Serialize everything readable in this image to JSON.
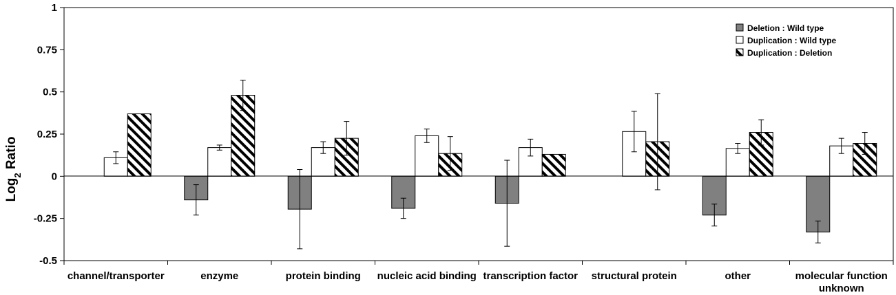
{
  "chart_data": {
    "type": "bar",
    "ylabel_main": "Log",
    "ylabel_sub": "2",
    "ylabel_tail": " Ratio",
    "ylim": [
      -0.5,
      1
    ],
    "yticks": [
      1,
      0.75,
      0.5,
      0.25,
      0,
      -0.25,
      -0.5
    ],
    "ytick_labels": [
      "1",
      "0.75",
      "0.5",
      "0.25",
      "0",
      "-0.25",
      "-0.5"
    ],
    "grid": false,
    "legend_position": "top-right",
    "categories": [
      [
        "channel/transporter"
      ],
      [
        "enzyme"
      ],
      [
        "protein binding"
      ],
      [
        "nucleic acid binding"
      ],
      [
        "transcription factor"
      ],
      [
        "structural protein"
      ],
      [
        "other"
      ],
      [
        "molecular function",
        "unknown"
      ]
    ],
    "series": [
      {
        "name": "Deletion : Wild type",
        "style": "solid",
        "color": "#808080",
        "values": [
          null,
          -0.14,
          -0.195,
          -0.19,
          -0.16,
          null,
          -0.23,
          -0.33
        ],
        "errors": [
          null,
          0.09,
          0.235,
          0.06,
          0.255,
          null,
          0.065,
          0.065
        ]
      },
      {
        "name": "Duplication : Wild type",
        "style": "open",
        "color": "#ffffff",
        "values": [
          0.11,
          0.17,
          0.17,
          0.24,
          0.17,
          0.265,
          0.165,
          0.18
        ],
        "errors": [
          0.035,
          0.015,
          0.035,
          0.04,
          0.05,
          0.12,
          0.03,
          0.045
        ]
      },
      {
        "name": "Duplication : Deletion",
        "style": "hatched",
        "color": "#000000",
        "values": [
          0.37,
          0.48,
          0.225,
          0.135,
          0.13,
          0.205,
          0.26,
          0.195
        ],
        "errors": [
          null,
          0.09,
          0.1,
          0.1,
          null,
          0.285,
          0.075,
          0.065
        ]
      }
    ]
  }
}
